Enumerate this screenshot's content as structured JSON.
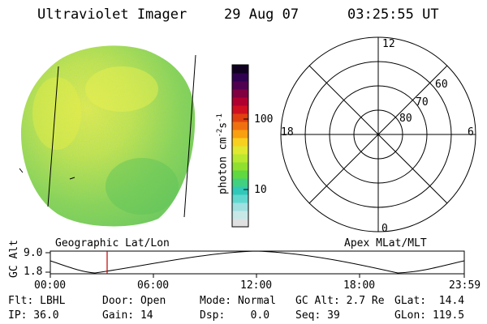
{
  "header": {
    "instrument": "Ultraviolet Imager",
    "date": "29 Aug 07",
    "time": "03:25:55 UT"
  },
  "colorbar": {
    "label": "photon cm",
    "label_sup1": "-2",
    "label_mid": "s",
    "label_sup2": "-1",
    "ticks": [
      "100",
      "10"
    ],
    "colors": [
      "#e0e0e0",
      "#c8e8e8",
      "#a0e0e0",
      "#60d8d0",
      "#30c8b8",
      "#40d080",
      "#60d840",
      "#90e030",
      "#b8e830",
      "#e0e830",
      "#f8d020",
      "#f8a010",
      "#f07010",
      "#e04010",
      "#d01020",
      "#b00030",
      "#800040",
      "#500050",
      "#300050",
      "#100020"
    ]
  },
  "polar": {
    "mlt_labels": {
      "top": "12",
      "bottom": "0",
      "left": "18",
      "right": "6"
    },
    "lat_labels": [
      "60",
      "70",
      "80"
    ]
  },
  "timeline": {
    "left_title": "Geographic Lat/Lon",
    "right_title": "Apex MLat/MLT",
    "axis_label": "GC Alt",
    "y_ticks": [
      "9.0",
      "1.8"
    ],
    "x_ticks": [
      "00:00",
      "06:00",
      "12:00",
      "18:00",
      "23:59"
    ]
  },
  "status": {
    "flt": "Flt: LBHL",
    "door": "Door: Open",
    "mode": "Mode: Normal",
    "gc_alt": "GC Alt: 2.7 Re",
    "glat": "GLat:  14.4",
    "ip": "IP: 36.0",
    "gain": "Gain: 14",
    "dsp": "Dsp:    0.0",
    "seq": "Seq: 39",
    "glon": "GLon: 119.5"
  }
}
